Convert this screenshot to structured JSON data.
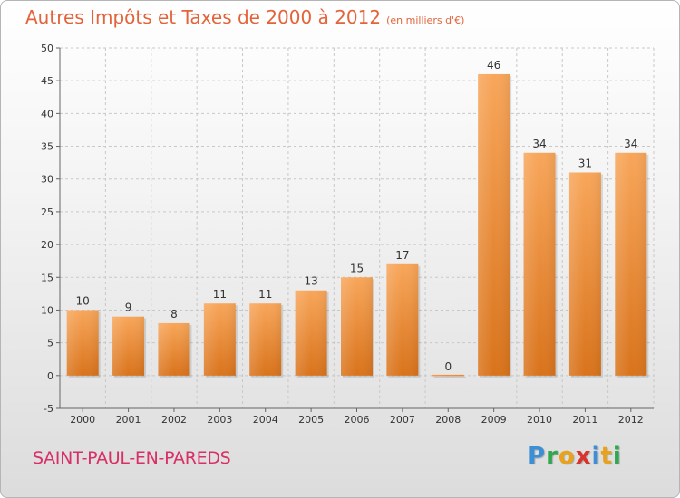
{
  "title": "Autres Impôts et Taxes de 2000 à 2012",
  "unit": "(en milliers d'€)",
  "commune": "SAINT-PAUL-EN-PAREDS",
  "logo": {
    "letters": [
      "P",
      "r",
      "o",
      "x",
      "i",
      "t",
      "i"
    ],
    "colors": [
      "#3a8fd6",
      "#2fa84f",
      "#e8a21b",
      "#d8342b",
      "#3a8fd6",
      "#e8a21b",
      "#2fa84f"
    ]
  },
  "chart_data": {
    "type": "bar",
    "categories": [
      "2000",
      "2001",
      "2002",
      "2003",
      "2004",
      "2005",
      "2006",
      "2007",
      "2008",
      "2009",
      "2010",
      "2011",
      "2012"
    ],
    "values": [
      10,
      9,
      8,
      11,
      11,
      13,
      15,
      17,
      0,
      46,
      34,
      31,
      34
    ],
    "ylim": [
      -5,
      50
    ],
    "yticks": [
      -5,
      0,
      5,
      10,
      15,
      20,
      25,
      30,
      35,
      40,
      45,
      50
    ],
    "grid": true,
    "bar_color": "#f08a2e"
  }
}
